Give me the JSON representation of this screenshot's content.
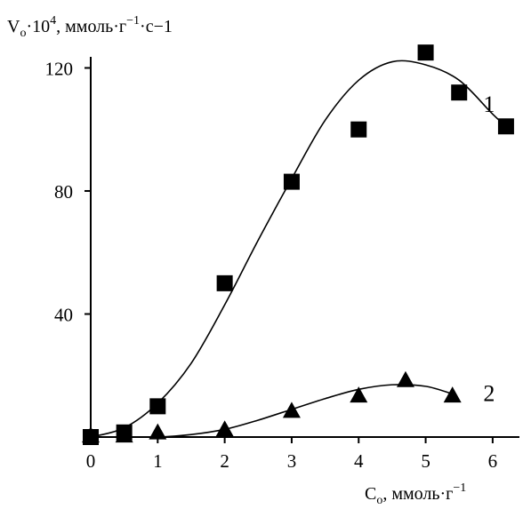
{
  "chart_data": {
    "type": "scatter",
    "ylabel": {
      "base": "V",
      "sub": "o",
      "mid": "·10",
      "sup": "4",
      "rest": ", ммоль·г",
      "unit_sup": "−1",
      "tail": "·с−1"
    },
    "xlabel": {
      "base": "C",
      "sub": "o",
      "rest": ", ммоль·г",
      "unit_sup": "−1"
    },
    "xlim": [
      0,
      6.4
    ],
    "ylim": [
      0,
      120
    ],
    "x_ticks": [
      "0",
      "1",
      "2",
      "3",
      "4",
      "5",
      "6"
    ],
    "y_ticks": [
      "40",
      "80",
      "120"
    ],
    "grid": false,
    "series": [
      {
        "label": "1",
        "marker": "square",
        "x": [
          0,
          0.5,
          1,
          2,
          3,
          4,
          5,
          5.5,
          6.2
        ],
        "y": [
          0,
          1.5,
          10,
          50,
          83,
          100,
          125,
          112,
          101
        ],
        "curve_x": [
          0,
          0.5,
          1,
          1.5,
          2,
          2.5,
          3,
          3.5,
          4,
          4.5,
          5,
          5.5,
          6,
          6.3
        ],
        "curve_y": [
          0,
          3,
          11,
          24,
          43,
          64,
          84,
          103,
          116,
          122,
          121,
          116,
          105,
          99
        ]
      },
      {
        "label": "2",
        "marker": "triangle",
        "x": [
          0,
          0.5,
          1,
          2,
          3,
          4,
          4.7,
          5.4
        ],
        "y": [
          0,
          0,
          1,
          2,
          8,
          13,
          18,
          13
        ],
        "curve_x": [
          0,
          0.5,
          1,
          1.5,
          2,
          2.5,
          3,
          3.5,
          4,
          4.5,
          5,
          5.4
        ],
        "curve_y": [
          0,
          0,
          0,
          0.8,
          2.5,
          5.5,
          9,
          12.5,
          15.5,
          17,
          16.5,
          14
        ]
      }
    ]
  }
}
